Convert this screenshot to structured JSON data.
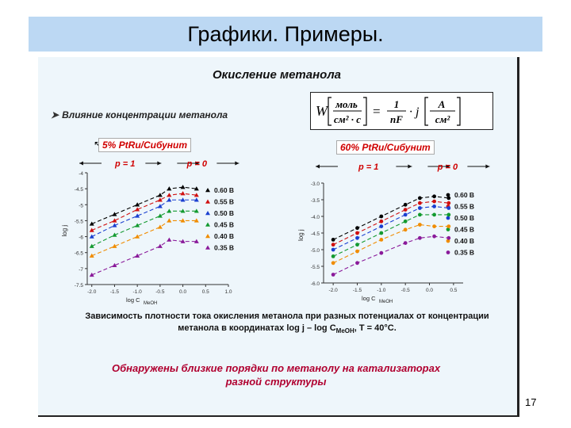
{
  "slide_title": "Графики. Примеры.",
  "page_number": "17",
  "heading": "Окисление метанола",
  "bullet": "Влияние концентрации метанола",
  "formula": {
    "lhs": "W",
    "unit_left_num": "моль",
    "unit_left_den": "см² · с",
    "eq": "=",
    "coef_num": "1",
    "coef_den": "nF",
    "dot_j": "· j",
    "unit_right_num": "А",
    "unit_right_den": "см²"
  },
  "tag_left": "5% PtRu/Сибунит",
  "tag_right": "60% PtRu/Сибунит",
  "caption_line1": "Зависимость плотности тока окисления метанола при разных потенциалах от концентрации",
  "caption_line2_a": "метанола в координатах log j – log C",
  "caption_line2_sub": "MeOH",
  "caption_line2_b": ", T = 40°C.",
  "conclusion_line1": "Обнаружены близкие порядки по метанолу на катализаторах",
  "conclusion_line2": "разной структуры",
  "chart_data": [
    {
      "type": "scatter",
      "title": "",
      "ylabel": "log j",
      "xlabel": "log C",
      "xlabel_sub": "MeOH",
      "xlim": [
        -2.1,
        1.0
      ],
      "ylim": [
        -7.5,
        -4.0
      ],
      "x_ticks": [
        -2.0,
        -1.5,
        -1.0,
        -0.5,
        0.0,
        0.5,
        1.0
      ],
      "x_tick_labels": [
        "-2.0",
        "-1.5",
        "-1.0",
        "-0.5",
        "0.0",
        "0.5",
        "1.0"
      ],
      "y_ticks": [
        -4.0,
        -4.5,
        -5.0,
        -5.5,
        -6.0,
        -6.5,
        -7.0,
        -7.5
      ],
      "y_tick_labels": [
        "-4",
        "-4.5",
        "-5",
        "-5.5",
        "-6",
        "-6.5",
        "-7",
        "-7.5"
      ],
      "region_left": "p = 1",
      "region_right": "p = 0",
      "break_x": -0.3,
      "legend_position": "right",
      "x": [
        -2.0,
        -1.5,
        -1.0,
        -0.5,
        -0.3,
        0.0,
        0.3
      ],
      "series": [
        {
          "name": "0.60 В",
          "color": "#000000",
          "marker": "triangle",
          "values": [
            -5.6,
            -5.3,
            -5.0,
            -4.7,
            -4.5,
            -4.45,
            -4.5
          ]
        },
        {
          "name": "0.55 В",
          "color": "#d01010",
          "marker": "triangle",
          "values": [
            -5.8,
            -5.5,
            -5.15,
            -4.85,
            -4.7,
            -4.65,
            -4.7
          ]
        },
        {
          "name": "0.50 В",
          "color": "#1a3fd0",
          "marker": "triangle",
          "values": [
            -6.0,
            -5.65,
            -5.35,
            -5.05,
            -4.85,
            -4.85,
            -4.85
          ]
        },
        {
          "name": "0.45 В",
          "color": "#139a30",
          "marker": "triangle",
          "values": [
            -6.3,
            -5.95,
            -5.65,
            -5.35,
            -5.2,
            -5.2,
            -5.2
          ]
        },
        {
          "name": "0.40 В",
          "color": "#f08c00",
          "marker": "triangle",
          "values": [
            -6.6,
            -6.3,
            -6.0,
            -5.7,
            -5.5,
            -5.5,
            -5.5
          ]
        },
        {
          "name": "0.35 В",
          "color": "#8a1a9a",
          "marker": "triangle",
          "values": [
            -7.2,
            -6.9,
            -6.6,
            -6.3,
            -6.1,
            -6.15,
            -6.15
          ]
        }
      ]
    },
    {
      "type": "scatter",
      "title": "",
      "ylabel": "log j",
      "xlabel": "log C",
      "xlabel_sub": "MeOH",
      "xlim": [
        -2.2,
        0.7
      ],
      "ylim": [
        -6.0,
        -3.0
      ],
      "x_ticks": [
        -2.0,
        -1.5,
        -1.0,
        -0.5,
        0.0,
        0.5
      ],
      "x_tick_labels": [
        "-2.0",
        "-1.5",
        "-1.0",
        "-0.5",
        "0.0",
        "0.5"
      ],
      "y_ticks": [
        -3.0,
        -3.5,
        -4.0,
        -4.5,
        -5.0,
        -5.5,
        -6.0
      ],
      "y_tick_labels": [
        "-3.0",
        "-3.5",
        "-4.0",
        "-4.5",
        "-5.0",
        "-5.5",
        "-6.0"
      ],
      "region_left": "p = 1",
      "region_right": "p = 0",
      "break_x": -0.2,
      "legend_position": "right",
      "x": [
        -2.0,
        -1.5,
        -1.0,
        -0.5,
        -0.2,
        0.1,
        0.4
      ],
      "series": [
        {
          "name": "0.60 В",
          "color": "#000000",
          "marker": "circle",
          "values": [
            -4.7,
            -4.35,
            -4.0,
            -3.65,
            -3.45,
            -3.4,
            -3.45
          ]
        },
        {
          "name": "0.55 В",
          "color": "#d01010",
          "marker": "circle",
          "values": [
            -4.85,
            -4.5,
            -4.15,
            -3.8,
            -3.6,
            -3.55,
            -3.6
          ]
        },
        {
          "name": "0.50 В",
          "color": "#1a3fd0",
          "marker": "circle",
          "values": [
            -5.0,
            -4.65,
            -4.3,
            -3.95,
            -3.75,
            -3.7,
            -3.75
          ]
        },
        {
          "name": "0.45 В",
          "color": "#139a30",
          "marker": "circle",
          "values": [
            -5.2,
            -4.85,
            -4.5,
            -4.15,
            -3.95,
            -3.95,
            -3.95
          ]
        },
        {
          "name": "0.40 В",
          "color": "#f08c00",
          "marker": "circle",
          "values": [
            -5.4,
            -5.05,
            -4.7,
            -4.4,
            -4.25,
            -4.3,
            -4.3
          ]
        },
        {
          "name": "0.35 В",
          "color": "#8a1a9a",
          "marker": "circle",
          "values": [
            -5.75,
            -5.4,
            -5.1,
            -4.8,
            -4.65,
            -4.6,
            -4.65
          ]
        }
      ]
    }
  ]
}
